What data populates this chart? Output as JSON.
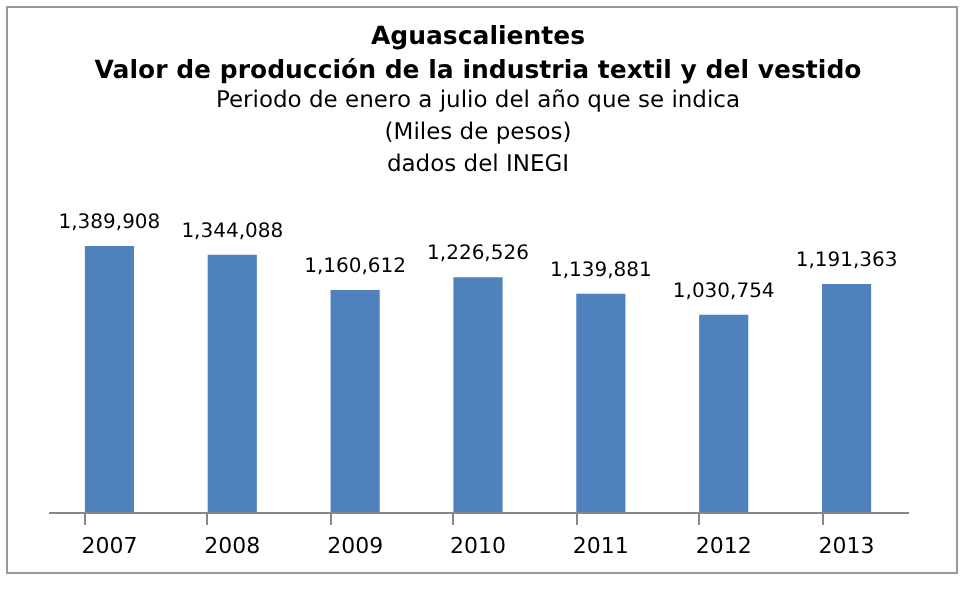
{
  "chart_data": {
    "type": "bar",
    "title": "Aguascalientes",
    "subtitle": "Valor de producción de la industria textil y del vestido",
    "annotations": [
      "Periodo de enero a julio del año que se indica",
      "(Miles de pesos)",
      "dados del INEGI"
    ],
    "categories": [
      "2007",
      "2008",
      "2009",
      "2010",
      "2011",
      "2012",
      "2013"
    ],
    "values": [
      1389908,
      1344088,
      1160612,
      1226526,
      1139881,
      1030754,
      1191363
    ],
    "value_labels": [
      "1,389,908",
      "1,344,088",
      "1,160,612",
      "1,226,526",
      "1,139,881",
      "1,030,754",
      "1,191,363"
    ],
    "color": "#4f81bd"
  }
}
